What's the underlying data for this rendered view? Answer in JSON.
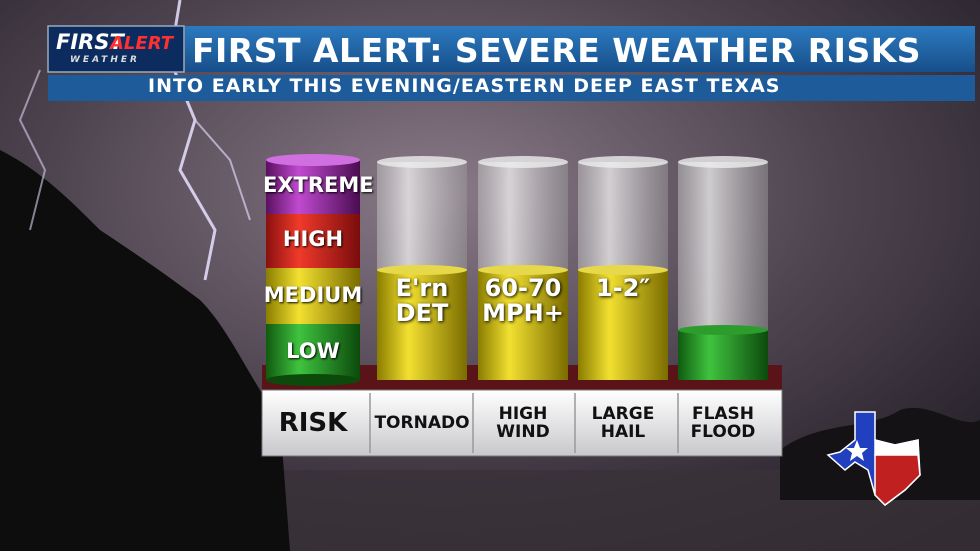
{
  "header": {
    "logo_first": "FIRST",
    "logo_alert": "ALERT",
    "logo_weather": "WEATHER",
    "title": "FIRST ALERT: SEVERE WEATHER RISKS",
    "subtitle": "INTO EARLY THIS EVENING/EASTERN DEEP EAST TEXAS"
  },
  "risk_scale": [
    "EXTREME",
    "HIGH",
    "MEDIUM",
    "LOW"
  ],
  "columns": [
    {
      "label": "RISK"
    },
    {
      "label": "TORNADO",
      "fill_text": "E'rn\nDET"
    },
    {
      "label": "HIGH\nWIND",
      "fill_text": "60-70\nMPH+"
    },
    {
      "label": "LARGE\nHAIL",
      "fill_text": "1-2″"
    },
    {
      "label": "FLASH\nFLOOD"
    }
  ]
}
